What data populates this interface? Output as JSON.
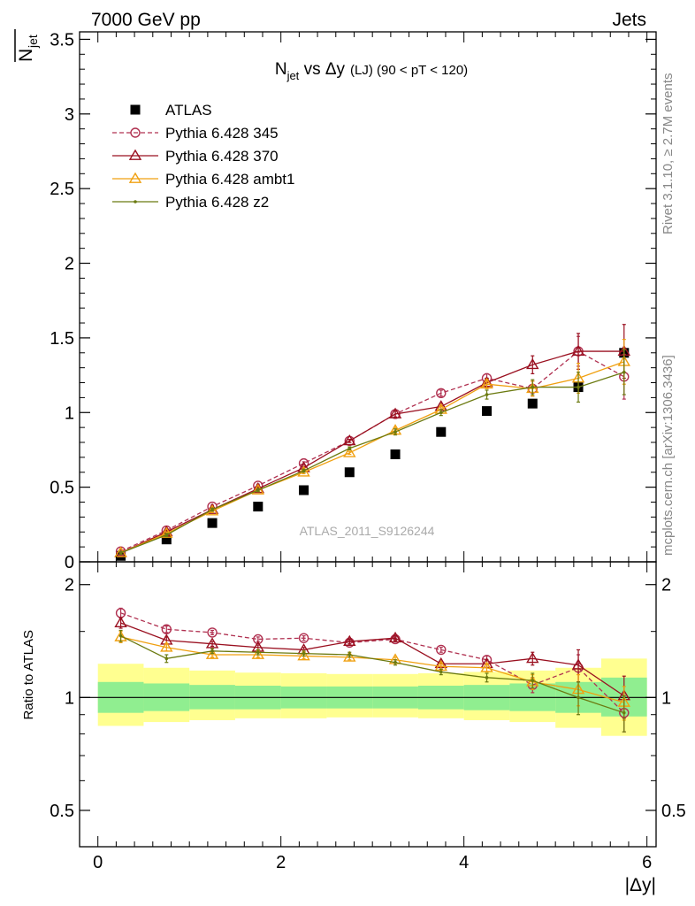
{
  "header": {
    "left": "7000 GeV pp",
    "right": "Jets"
  },
  "side_labels": {
    "rivet": "Rivet 3.1.10, ≥ 2.7M events",
    "mcplots": "mcplots.cern.ch [arXiv:1306.3436]"
  },
  "chart_data": [
    {
      "panel": "main",
      "type": "scatter",
      "title": {
        "main": "N",
        "sub": "jet",
        "rest": " vs Δy",
        "small": "(LJ) (90 < pT < 120)"
      },
      "ylabel": {
        "main": "N",
        "sub": "jet",
        "overline": true
      },
      "watermark": "ATLAS_2011_S9126244",
      "xlim": [
        -0.2,
        6.1
      ],
      "ylim": [
        0,
        3.55
      ],
      "yticks": [
        0,
        0.5,
        1,
        1.5,
        2,
        2.5,
        3,
        3.5
      ],
      "ytick_labels": [
        "0",
        "0.5",
        "1",
        "1.5",
        "2",
        "2.5",
        "3",
        "3.5"
      ],
      "legend_position": "top-left",
      "x": [
        0.25,
        0.75,
        1.25,
        1.75,
        2.25,
        2.75,
        3.25,
        3.75,
        4.25,
        4.75,
        5.25,
        5.75
      ],
      "x_halfwidth": 0.25,
      "series": [
        {
          "name": "ATLAS",
          "color": "#000000",
          "marker": "square",
          "line": "none",
          "values": [
            0.04,
            0.15,
            0.26,
            0.37,
            0.48,
            0.6,
            0.72,
            0.87,
            1.01,
            1.06,
            1.17,
            1.4
          ]
        },
        {
          "name": "Pythia 6.428 345",
          "color": "#b03050",
          "marker": "circle",
          "line": "dashed",
          "values": [
            0.07,
            0.21,
            0.37,
            0.51,
            0.66,
            0.81,
            0.99,
            1.13,
            1.23,
            1.16,
            1.41,
            1.24
          ],
          "errors": [
            0.01,
            0.01,
            0.01,
            0.01,
            0.01,
            0.01,
            0.02,
            0.02,
            0.03,
            0.05,
            0.1,
            0.15
          ]
        },
        {
          "name": "Pythia 6.428 370",
          "color": "#9a1020",
          "marker": "triangle",
          "line": "solid",
          "values": [
            0.06,
            0.2,
            0.35,
            0.49,
            0.63,
            0.81,
            0.99,
            1.04,
            1.2,
            1.32,
            1.41,
            1.41
          ],
          "errors": [
            0.01,
            0.01,
            0.01,
            0.01,
            0.01,
            0.01,
            0.02,
            0.02,
            0.03,
            0.06,
            0.12,
            0.18
          ]
        },
        {
          "name": "Pythia 6.428 ambt1",
          "color": "#f0a010",
          "marker": "triangle",
          "line": "solid",
          "values": [
            0.06,
            0.19,
            0.34,
            0.48,
            0.6,
            0.73,
            0.88,
            1.02,
            1.19,
            1.16,
            1.23,
            1.34
          ],
          "errors": [
            0.01,
            0.01,
            0.01,
            0.01,
            0.01,
            0.01,
            0.02,
            0.02,
            0.03,
            0.05,
            0.1,
            0.15
          ]
        },
        {
          "name": "Pythia 6.428 z2",
          "color": "#6b7a10",
          "marker": "dot",
          "line": "solid",
          "values": [
            0.06,
            0.18,
            0.35,
            0.48,
            0.61,
            0.76,
            0.87,
            1.0,
            1.12,
            1.17,
            1.17,
            1.27
          ],
          "errors": [
            0.01,
            0.01,
            0.01,
            0.01,
            0.01,
            0.01,
            0.02,
            0.02,
            0.03,
            0.05,
            0.1,
            0.15
          ]
        }
      ]
    },
    {
      "panel": "ratio",
      "type": "scatter",
      "ylabel": "Ratio to ATLAS",
      "xlabel": "|Δy|",
      "xlim": [
        -0.2,
        6.1
      ],
      "ylim": [
        0.4,
        2.3
      ],
      "yscale": "log",
      "yticks": [
        0.5,
        1,
        2
      ],
      "ytick_labels": [
        "0.5",
        "1",
        "2"
      ],
      "xticks": [
        0,
        2,
        4,
        6
      ],
      "xtick_labels": [
        "0",
        "2",
        "4",
        "6"
      ],
      "band_inner": [
        0.91,
        0.92,
        0.93,
        0.93,
        0.935,
        0.935,
        0.935,
        0.93,
        0.925,
        0.92,
        0.91,
        0.89
      ],
      "band_inner_upper": [
        1.1,
        1.09,
        1.08,
        1.075,
        1.07,
        1.07,
        1.07,
        1.075,
        1.08,
        1.09,
        1.1,
        1.13
      ],
      "band_outer": [
        0.84,
        0.86,
        0.87,
        0.88,
        0.88,
        0.885,
        0.885,
        0.88,
        0.87,
        0.86,
        0.83,
        0.79
      ],
      "band_outer_upper": [
        1.23,
        1.2,
        1.18,
        1.165,
        1.16,
        1.155,
        1.155,
        1.16,
        1.17,
        1.18,
        1.2,
        1.27
      ],
      "band_colors": {
        "inner": "#90ee90",
        "outer": "#ffff90"
      },
      "x": [
        0.25,
        0.75,
        1.25,
        1.75,
        2.25,
        2.75,
        3.25,
        3.75,
        4.25,
        4.75,
        5.25,
        5.75
      ],
      "series": [
        {
          "name": "Pythia 6.428 345",
          "color": "#b03050",
          "marker": "circle",
          "line": "dashed",
          "values": [
            1.68,
            1.52,
            1.49,
            1.43,
            1.44,
            1.4,
            1.43,
            1.34,
            1.26,
            1.08,
            1.2,
            0.91
          ],
          "errors": [
            0.05,
            0.03,
            0.02,
            0.02,
            0.02,
            0.02,
            0.02,
            0.02,
            0.03,
            0.05,
            0.1,
            0.1
          ]
        },
        {
          "name": "Pythia 6.428 370",
          "color": "#9a1020",
          "marker": "triangle",
          "line": "solid",
          "values": [
            1.58,
            1.42,
            1.39,
            1.36,
            1.34,
            1.41,
            1.44,
            1.23,
            1.23,
            1.27,
            1.22,
            1.01
          ],
          "errors": [
            0.05,
            0.03,
            0.02,
            0.02,
            0.02,
            0.02,
            0.02,
            0.02,
            0.03,
            0.05,
            0.12,
            0.13
          ]
        },
        {
          "name": "Pythia 6.428 ambt1",
          "color": "#f0a010",
          "marker": "triangle",
          "line": "solid",
          "values": [
            1.45,
            1.36,
            1.3,
            1.3,
            1.29,
            1.28,
            1.26,
            1.21,
            1.2,
            1.1,
            1.05,
            0.97
          ],
          "errors": [
            0.05,
            0.03,
            0.02,
            0.02,
            0.02,
            0.02,
            0.02,
            0.02,
            0.03,
            0.05,
            0.1,
            0.1
          ]
        },
        {
          "name": "Pythia 6.428 z2",
          "color": "#6b7a10",
          "marker": "dot",
          "line": "solid",
          "values": [
            1.46,
            1.27,
            1.33,
            1.32,
            1.31,
            1.3,
            1.24,
            1.17,
            1.13,
            1.11,
            1.0,
            0.91
          ],
          "errors": [
            0.05,
            0.03,
            0.02,
            0.02,
            0.02,
            0.02,
            0.02,
            0.02,
            0.03,
            0.05,
            0.1,
            0.1
          ]
        }
      ]
    }
  ]
}
